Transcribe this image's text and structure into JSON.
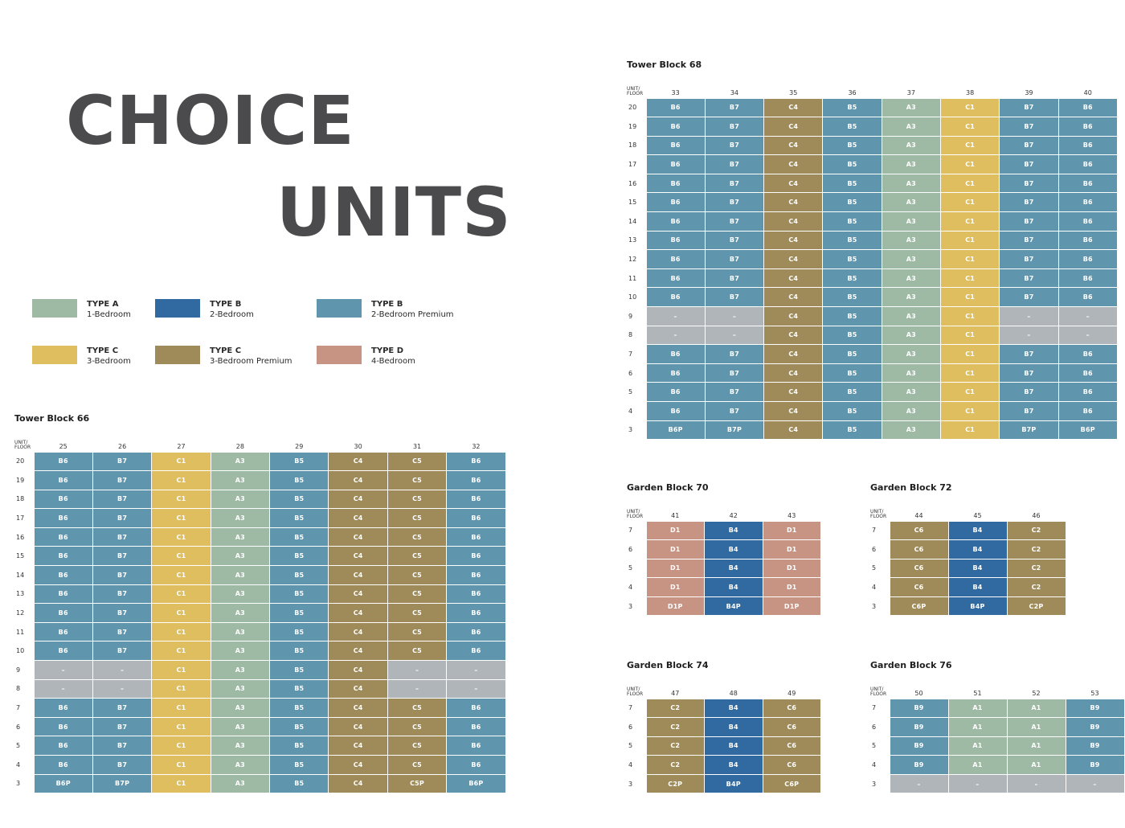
{
  "title": {
    "line1": "CHOICE",
    "line2": "UNITS"
  },
  "colors": {
    "A": "#9ebaa5",
    "B": "#306aa0",
    "BP": "#5f95ad",
    "C": "#dfbe5f",
    "CP": "#9f8b59",
    "D": "#c79383",
    "X": "#b0b5b9"
  },
  "legend": [
    {
      "name": "TYPE A",
      "desc": "1-Bedroom",
      "color": "#9ebaa5"
    },
    {
      "name": "TYPE B",
      "desc": "2-Bedroom",
      "color": "#306aa0"
    },
    {
      "name": "TYPE B",
      "desc": "2-Bedroom Premium",
      "color": "#5f95ad"
    },
    {
      "name": "TYPE C",
      "desc": "3-Bedroom",
      "color": "#dfbe5f"
    },
    {
      "name": "TYPE C",
      "desc": "3-Bedroom Premium",
      "color": "#9f8b59"
    },
    {
      "name": "TYPE D",
      "desc": "4-Bedroom",
      "color": "#c79383"
    }
  ],
  "blocks": {
    "tower66": {
      "title": "Tower Block 66",
      "corner": "UNIT/ FLOOR",
      "units": [
        "25",
        "26",
        "27",
        "28",
        "29",
        "30",
        "31",
        "32"
      ],
      "rows": [
        {
          "floor": "20",
          "cells": [
            "B6",
            "B7",
            "C1",
            "A3",
            "B5",
            "C4",
            "C5",
            "B6"
          ]
        },
        {
          "floor": "19",
          "cells": [
            "B6",
            "B7",
            "C1",
            "A3",
            "B5",
            "C4",
            "C5",
            "B6"
          ]
        },
        {
          "floor": "18",
          "cells": [
            "B6",
            "B7",
            "C1",
            "A3",
            "B5",
            "C4",
            "C5",
            "B6"
          ]
        },
        {
          "floor": "17",
          "cells": [
            "B6",
            "B7",
            "C1",
            "A3",
            "B5",
            "C4",
            "C5",
            "B6"
          ]
        },
        {
          "floor": "16",
          "cells": [
            "B6",
            "B7",
            "C1",
            "A3",
            "B5",
            "C4",
            "C5",
            "B6"
          ]
        },
        {
          "floor": "15",
          "cells": [
            "B6",
            "B7",
            "C1",
            "A3",
            "B5",
            "C4",
            "C5",
            "B6"
          ]
        },
        {
          "floor": "14",
          "cells": [
            "B6",
            "B7",
            "C1",
            "A3",
            "B5",
            "C4",
            "C5",
            "B6"
          ]
        },
        {
          "floor": "13",
          "cells": [
            "B6",
            "B7",
            "C1",
            "A3",
            "B5",
            "C4",
            "C5",
            "B6"
          ]
        },
        {
          "floor": "12",
          "cells": [
            "B6",
            "B7",
            "C1",
            "A3",
            "B5",
            "C4",
            "C5",
            "B6"
          ]
        },
        {
          "floor": "11",
          "cells": [
            "B6",
            "B7",
            "C1",
            "A3",
            "B5",
            "C4",
            "C5",
            "B6"
          ]
        },
        {
          "floor": "10",
          "cells": [
            "B6",
            "B7",
            "C1",
            "A3",
            "B5",
            "C4",
            "C5",
            "B6"
          ]
        },
        {
          "floor": "9",
          "cells": [
            "–",
            "–",
            "C1",
            "A3",
            "B5",
            "C4",
            "–",
            "–"
          ]
        },
        {
          "floor": "8",
          "cells": [
            "–",
            "–",
            "C1",
            "A3",
            "B5",
            "C4",
            "–",
            "–"
          ]
        },
        {
          "floor": "7",
          "cells": [
            "B6",
            "B7",
            "C1",
            "A3",
            "B5",
            "C4",
            "C5",
            "B6"
          ]
        },
        {
          "floor": "6",
          "cells": [
            "B6",
            "B7",
            "C1",
            "A3",
            "B5",
            "C4",
            "C5",
            "B6"
          ]
        },
        {
          "floor": "5",
          "cells": [
            "B6",
            "B7",
            "C1",
            "A3",
            "B5",
            "C4",
            "C5",
            "B6"
          ]
        },
        {
          "floor": "4",
          "cells": [
            "B6",
            "B7",
            "C1",
            "A3",
            "B5",
            "C4",
            "C5",
            "B6"
          ]
        },
        {
          "floor": "3",
          "cells": [
            "B6P",
            "B7P",
            "C1",
            "A3",
            "B5",
            "C4",
            "C5P",
            "B6P"
          ]
        }
      ],
      "types": [
        "BP",
        "BP",
        "C",
        "A",
        "BP",
        "CP",
        "CP",
        "BP"
      ]
    },
    "tower68": {
      "title": "Tower Block 68",
      "corner": "UNIT/ FLOOR",
      "units": [
        "33",
        "34",
        "35",
        "36",
        "37",
        "38",
        "39",
        "40"
      ],
      "rows": [
        {
          "floor": "20",
          "cells": [
            "B6",
            "B7",
            "C4",
            "B5",
            "A3",
            "C1",
            "B7",
            "B6"
          ]
        },
        {
          "floor": "19",
          "cells": [
            "B6",
            "B7",
            "C4",
            "B5",
            "A3",
            "C1",
            "B7",
            "B6"
          ]
        },
        {
          "floor": "18",
          "cells": [
            "B6",
            "B7",
            "C4",
            "B5",
            "A3",
            "C1",
            "B7",
            "B6"
          ]
        },
        {
          "floor": "17",
          "cells": [
            "B6",
            "B7",
            "C4",
            "B5",
            "A3",
            "C1",
            "B7",
            "B6"
          ]
        },
        {
          "floor": "16",
          "cells": [
            "B6",
            "B7",
            "C4",
            "B5",
            "A3",
            "C1",
            "B7",
            "B6"
          ]
        },
        {
          "floor": "15",
          "cells": [
            "B6",
            "B7",
            "C4",
            "B5",
            "A3",
            "C1",
            "B7",
            "B6"
          ]
        },
        {
          "floor": "14",
          "cells": [
            "B6",
            "B7",
            "C4",
            "B5",
            "A3",
            "C1",
            "B7",
            "B6"
          ]
        },
        {
          "floor": "13",
          "cells": [
            "B6",
            "B7",
            "C4",
            "B5",
            "A3",
            "C1",
            "B7",
            "B6"
          ]
        },
        {
          "floor": "12",
          "cells": [
            "B6",
            "B7",
            "C4",
            "B5",
            "A3",
            "C1",
            "B7",
            "B6"
          ]
        },
        {
          "floor": "11",
          "cells": [
            "B6",
            "B7",
            "C4",
            "B5",
            "A3",
            "C1",
            "B7",
            "B6"
          ]
        },
        {
          "floor": "10",
          "cells": [
            "B6",
            "B7",
            "C4",
            "B5",
            "A3",
            "C1",
            "B7",
            "B6"
          ]
        },
        {
          "floor": "9",
          "cells": [
            "–",
            "–",
            "C4",
            "B5",
            "A3",
            "C1",
            "–",
            "–"
          ]
        },
        {
          "floor": "8",
          "cells": [
            "–",
            "–",
            "C4",
            "B5",
            "A3",
            "C1",
            "–",
            "–"
          ]
        },
        {
          "floor": "7",
          "cells": [
            "B6",
            "B7",
            "C4",
            "B5",
            "A3",
            "C1",
            "B7",
            "B6"
          ]
        },
        {
          "floor": "6",
          "cells": [
            "B6",
            "B7",
            "C4",
            "B5",
            "A3",
            "C1",
            "B7",
            "B6"
          ]
        },
        {
          "floor": "5",
          "cells": [
            "B6",
            "B7",
            "C4",
            "B5",
            "A3",
            "C1",
            "B7",
            "B6"
          ]
        },
        {
          "floor": "4",
          "cells": [
            "B6",
            "B7",
            "C4",
            "B5",
            "A3",
            "C1",
            "B7",
            "B6"
          ]
        },
        {
          "floor": "3",
          "cells": [
            "B6P",
            "B7P",
            "C4",
            "B5",
            "A3",
            "C1",
            "B7P",
            "B6P"
          ]
        }
      ],
      "types": [
        "BP",
        "BP",
        "CP",
        "BP",
        "A",
        "C",
        "BP",
        "BP"
      ]
    },
    "garden70": {
      "title": "Garden Block 70",
      "corner": "UNIT/ FLOOR",
      "units": [
        "41",
        "42",
        "43"
      ],
      "rows": [
        {
          "floor": "7",
          "cells": [
            "D1",
            "B4",
            "D1"
          ]
        },
        {
          "floor": "6",
          "cells": [
            "D1",
            "B4",
            "D1"
          ]
        },
        {
          "floor": "5",
          "cells": [
            "D1",
            "B4",
            "D1"
          ]
        },
        {
          "floor": "4",
          "cells": [
            "D1",
            "B4",
            "D1"
          ]
        },
        {
          "floor": "3",
          "cells": [
            "D1P",
            "B4P",
            "D1P"
          ]
        }
      ],
      "types": [
        "D",
        "B",
        "D"
      ]
    },
    "garden72": {
      "title": "Garden Block 72",
      "corner": "UNIT/ FLOOR",
      "units": [
        "44",
        "45",
        "46"
      ],
      "rows": [
        {
          "floor": "7",
          "cells": [
            "C6",
            "B4",
            "C2"
          ]
        },
        {
          "floor": "6",
          "cells": [
            "C6",
            "B4",
            "C2"
          ]
        },
        {
          "floor": "5",
          "cells": [
            "C6",
            "B4",
            "C2"
          ]
        },
        {
          "floor": "4",
          "cells": [
            "C6",
            "B4",
            "C2"
          ]
        },
        {
          "floor": "3",
          "cells": [
            "C6P",
            "B4P",
            "C2P"
          ]
        }
      ],
      "types": [
        "CP",
        "B",
        "CP"
      ]
    },
    "garden74": {
      "title": "Garden Block 74",
      "corner": "UNIT/ FLOOR",
      "units": [
        "47",
        "48",
        "49"
      ],
      "rows": [
        {
          "floor": "7",
          "cells": [
            "C2",
            "B4",
            "C6"
          ]
        },
        {
          "floor": "6",
          "cells": [
            "C2",
            "B4",
            "C6"
          ]
        },
        {
          "floor": "5",
          "cells": [
            "C2",
            "B4",
            "C6"
          ]
        },
        {
          "floor": "4",
          "cells": [
            "C2",
            "B4",
            "C6"
          ]
        },
        {
          "floor": "3",
          "cells": [
            "C2P",
            "B4P",
            "C6P"
          ]
        }
      ],
      "types": [
        "CP",
        "B",
        "CP"
      ]
    },
    "garden76": {
      "title": "Garden Block 76",
      "corner": "UNIT/ FLOOR",
      "units": [
        "50",
        "51",
        "52",
        "53"
      ],
      "rows": [
        {
          "floor": "7",
          "cells": [
            "B9",
            "A1",
            "A1",
            "B9"
          ]
        },
        {
          "floor": "6",
          "cells": [
            "B9",
            "A1",
            "A1",
            "B9"
          ]
        },
        {
          "floor": "5",
          "cells": [
            "B9",
            "A1",
            "A1",
            "B9"
          ]
        },
        {
          "floor": "4",
          "cells": [
            "B9",
            "A1",
            "A1",
            "B9"
          ]
        },
        {
          "floor": "3",
          "cells": [
            "–",
            "–",
            "–",
            "–"
          ]
        }
      ],
      "types": [
        "BP",
        "A",
        "A",
        "BP"
      ]
    }
  }
}
